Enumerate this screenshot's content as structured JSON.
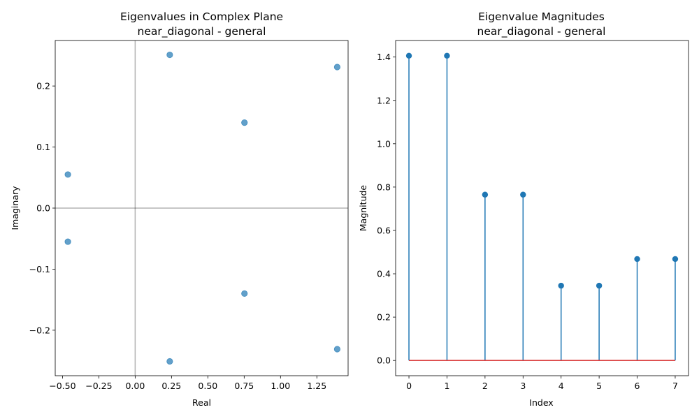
{
  "chart_data": [
    {
      "type": "scatter",
      "title": "Eigenvalues in Complex Plane",
      "subtitle": "near_diagonal - general",
      "xlabel": "Real",
      "ylabel": "Imaginary",
      "xlim": [
        -0.55,
        1.465
      ],
      "ylim": [
        -0.2745,
        0.2745
      ],
      "xticks": [
        -0.5,
        -0.25,
        0.0,
        0.25,
        0.5,
        0.75,
        1.0,
        1.25
      ],
      "xtick_labels": [
        "−0.50",
        "−0.25",
        "0.00",
        "0.25",
        "0.50",
        "0.75",
        "1.00",
        "1.25"
      ],
      "yticks": [
        -0.2,
        -0.1,
        0.0,
        0.1,
        0.2
      ],
      "ytick_labels": [
        "−0.2",
        "−0.1",
        "0.0",
        "0.1",
        "0.2"
      ],
      "reference_lines": {
        "x": 0,
        "y": 0
      },
      "color": "#1f77b4",
      "points": [
        {
          "x": 1.39,
          "y": 0.231
        },
        {
          "x": 1.39,
          "y": -0.231
        },
        {
          "x": 0.238,
          "y": 0.251
        },
        {
          "x": 0.238,
          "y": -0.251
        },
        {
          "x": 0.752,
          "y": 0.14
        },
        {
          "x": 0.752,
          "y": -0.14
        },
        {
          "x": -0.463,
          "y": 0.055
        },
        {
          "x": -0.463,
          "y": -0.055
        }
      ]
    },
    {
      "type": "stem",
      "title": "Eigenvalue Magnitudes",
      "subtitle": "near_diagonal - general",
      "xlabel": "Index",
      "ylabel": "Magnitude",
      "xlim": [
        -0.35,
        7.35
      ],
      "ylim": [
        -0.0703,
        1.4763
      ],
      "xticks": [
        0,
        1,
        2,
        3,
        4,
        5,
        6,
        7
      ],
      "xtick_labels": [
        "0",
        "1",
        "2",
        "3",
        "4",
        "5",
        "6",
        "7"
      ],
      "yticks": [
        0.0,
        0.2,
        0.4,
        0.6,
        0.8,
        1.0,
        1.2,
        1.4
      ],
      "ytick_labels": [
        "0.0",
        "0.2",
        "0.4",
        "0.6",
        "0.8",
        "1.0",
        "1.2",
        "1.4"
      ],
      "color": "#1f77b4",
      "baseline_color": "#d62728",
      "x": [
        0,
        1,
        2,
        3,
        4,
        5,
        6,
        7
      ],
      "values": [
        1.406,
        1.406,
        0.765,
        0.765,
        0.345,
        0.345,
        0.468,
        0.468
      ]
    }
  ]
}
